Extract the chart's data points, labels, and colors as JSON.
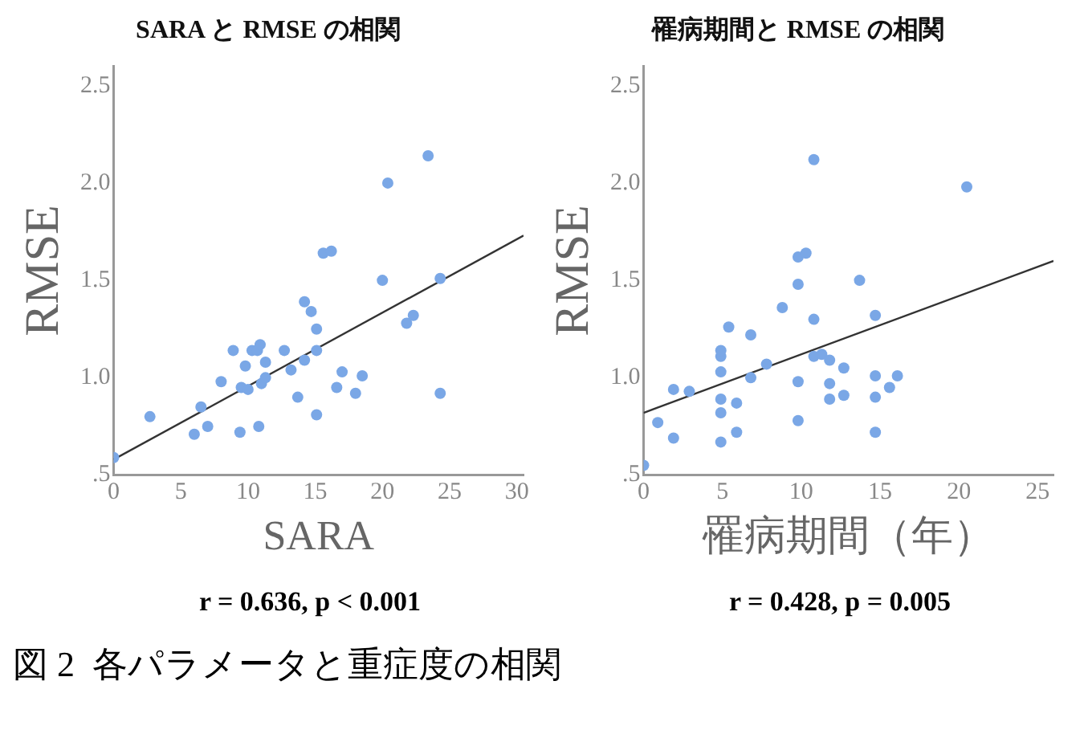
{
  "chart_data": [
    {
      "type": "scatter",
      "title": "SARA と RMSE の相関",
      "xlabel": "SARA",
      "ylabel": "RMSE",
      "xlim": [
        0,
        30.5
      ],
      "ylim": [
        0.5,
        2.6
      ],
      "xticks": [
        0,
        5,
        10,
        15,
        20,
        25,
        30
      ],
      "yticks": [
        {
          "value": 0.5,
          "label": ".5"
        },
        {
          "value": 1,
          "label": "1.0"
        },
        {
          "value": 1.5,
          "label": "1.5"
        },
        {
          "value": 2,
          "label": "2.0"
        },
        {
          "value": 2.5,
          "label": "2.5"
        }
      ],
      "grid": false,
      "legend": false,
      "series": [
        {
          "marker": "circle",
          "color": "#7aa7e6",
          "x": [
            0,
            2.7,
            6.5,
            6.0,
            7.0,
            8.0,
            8.9,
            9.4,
            9.5,
            9.8,
            10.0,
            10.3,
            10.7,
            10.9,
            10.8,
            11.0,
            11.3,
            11.3,
            12.7,
            13.2,
            13.7,
            14.2,
            14.2,
            14.7,
            15.1,
            15.1,
            15.1,
            15.6,
            16.2,
            16.6,
            17.0,
            18.0,
            18.5,
            20.0,
            20.4,
            21.8,
            22.3,
            23.4,
            24.3,
            24.3
          ],
          "values": [
            0.59,
            0.8,
            0.85,
            0.71,
            0.75,
            0.98,
            1.14,
            0.72,
            0.95,
            1.06,
            0.94,
            1.14,
            1.14,
            1.17,
            0.75,
            0.97,
            1.0,
            1.08,
            1.14,
            1.04,
            0.9,
            1.39,
            1.09,
            1.34,
            1.25,
            1.14,
            0.81,
            1.64,
            1.65,
            0.95,
            1.03,
            0.92,
            1.01,
            1.5,
            2.0,
            1.28,
            1.32,
            2.14,
            1.51,
            0.92
          ]
        },
        {
          "type": "line",
          "color": "#333333",
          "x": [
            0,
            30.5
          ],
          "values": [
            0.58,
            1.73
          ]
        }
      ],
      "annotations": [
        "r = 0.636, p < 0.001"
      ]
    },
    {
      "type": "scatter",
      "title": "罹病期間と RMSE の相関",
      "xlabel": "罹病期間（年）",
      "ylabel": "RMSE",
      "xlim": [
        0,
        26
      ],
      "ylim": [
        0.5,
        2.6
      ],
      "xticks": [
        0,
        5,
        10,
        15,
        20,
        25
      ],
      "yticks": [
        {
          "value": 0.5,
          "label": ".5"
        },
        {
          "value": 1,
          "label": "1.0"
        },
        {
          "value": 1.5,
          "label": "1.5"
        },
        {
          "value": 2,
          "label": "2.0"
        },
        {
          "value": 2.5,
          "label": "2.5"
        }
      ],
      "grid": false,
      "legend": false,
      "series": [
        {
          "marker": "circle",
          "color": "#7aa7e6",
          "x": [
            0,
            0.9,
            1.9,
            1.9,
            2.9,
            4.9,
            4.9,
            4.9,
            4.9,
            4.9,
            4.9,
            5.4,
            5.9,
            5.9,
            6.8,
            6.8,
            7.8,
            8.8,
            9.8,
            9.8,
            9.8,
            9.8,
            10.3,
            10.8,
            10.8,
            10.8,
            11.3,
            11.8,
            11.8,
            11.8,
            12.7,
            12.7,
            13.7,
            14.7,
            14.7,
            14.7,
            14.7,
            15.6,
            16.1,
            20.5
          ],
          "values": [
            0.55,
            0.77,
            0.69,
            0.94,
            0.93,
            0.67,
            0.82,
            0.89,
            1.03,
            1.11,
            1.14,
            1.26,
            0.72,
            0.87,
            1.0,
            1.22,
            1.07,
            1.36,
            0.78,
            0.98,
            1.48,
            1.62,
            1.64,
            2.12,
            1.3,
            1.11,
            1.12,
            1.09,
            0.97,
            0.89,
            1.05,
            0.91,
            1.5,
            1.32,
            1.01,
            0.9,
            0.72,
            0.95,
            1.01,
            1.98
          ]
        },
        {
          "type": "line",
          "color": "#333333",
          "x": [
            0,
            26
          ],
          "values": [
            0.82,
            1.6
          ]
        }
      ],
      "annotations": [
        "r = 0.428, p = 0.005",
        "図 2  各パラメータと重症度の相関"
      ]
    }
  ]
}
